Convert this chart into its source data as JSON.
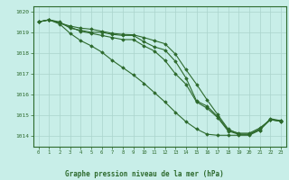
{
  "title": "Graphe pression niveau de la mer (hPa)",
  "xlabel_hours": [
    0,
    1,
    2,
    3,
    4,
    5,
    6,
    7,
    8,
    9,
    10,
    11,
    12,
    13,
    14,
    15,
    16,
    17,
    18,
    19,
    20,
    21,
    22,
    23
  ],
  "line1": [
    1019.5,
    1019.6,
    1019.5,
    1019.2,
    1019.1,
    1019.0,
    1019.0,
    1018.9,
    1018.85,
    1018.85,
    1018.55,
    1018.3,
    1018.15,
    1017.6,
    1016.8,
    1015.7,
    1015.45,
    1014.95,
    1014.3,
    1014.15,
    1014.15,
    1014.4,
    1014.8,
    1014.75
  ],
  "line2": [
    1019.5,
    1019.6,
    1019.45,
    1019.3,
    1019.2,
    1019.15,
    1019.05,
    1018.95,
    1018.9,
    1018.88,
    1018.75,
    1018.6,
    1018.45,
    1017.95,
    1017.2,
    1016.5,
    1015.75,
    1015.05,
    1014.35,
    1014.1,
    1014.1,
    1014.3,
    1014.85,
    1014.75
  ],
  "line3": [
    1019.5,
    1019.6,
    1019.45,
    1019.25,
    1019.05,
    1018.95,
    1018.85,
    1018.75,
    1018.65,
    1018.65,
    1018.35,
    1018.1,
    1017.65,
    1017.0,
    1016.5,
    1015.65,
    1015.35,
    1014.9,
    1014.25,
    1014.1,
    1014.1,
    1014.35,
    1014.8,
    1014.72
  ],
  "line4": [
    1019.5,
    1019.6,
    1019.4,
    1018.95,
    1018.6,
    1018.35,
    1018.05,
    1017.65,
    1017.3,
    1016.95,
    1016.55,
    1016.1,
    1015.65,
    1015.15,
    1014.7,
    1014.35,
    1014.1,
    1014.05,
    1014.05,
    1014.05,
    1014.05,
    1014.3,
    1014.8,
    1014.72
  ],
  "ylim": [
    1013.5,
    1020.25
  ],
  "yticks": [
    1014,
    1015,
    1016,
    1017,
    1018,
    1019,
    1020
  ],
  "line_color": "#2d6a2d",
  "marker": "D",
  "marker_size": 1.8,
  "bg_color": "#c8eee8",
  "grid_color": "#aad4cc",
  "line_width": 0.8
}
